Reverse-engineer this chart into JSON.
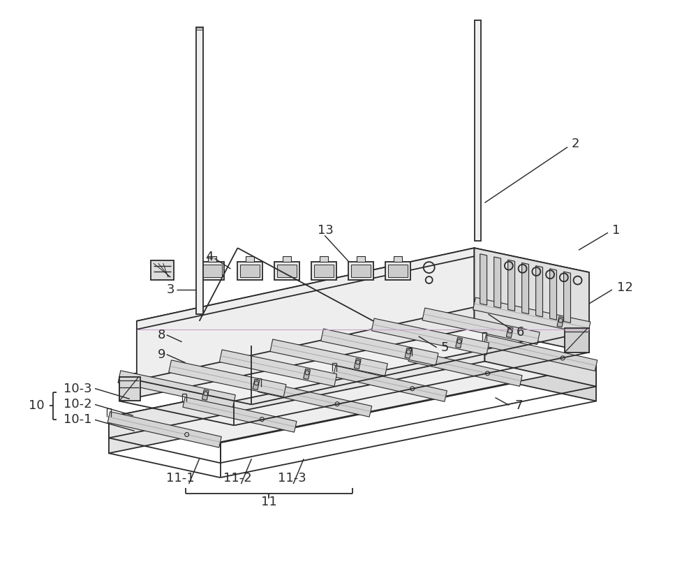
{
  "bg_color": "#ffffff",
  "lc": "#2a2a2a",
  "lw": 1.3,
  "fig_width": 10.0,
  "fig_height": 8.38
}
